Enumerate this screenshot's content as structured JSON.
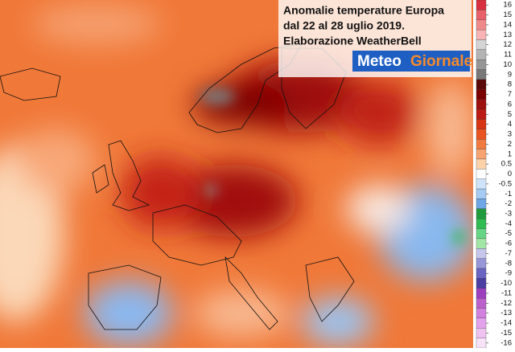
{
  "title_lines": [
    "Anomalie temperature Europa",
    "dal 22 al 28 uglio 2019.",
    "Elaborazione WeatherBell"
  ],
  "logo": {
    "first": "Meteo",
    "second": "Giornale"
  },
  "colorbar": {
    "ticks": [
      16,
      15,
      14,
      13,
      12,
      11,
      10,
      9,
      8,
      7,
      6,
      5,
      4,
      3,
      2,
      1,
      0.5,
      0,
      -0.5,
      -1,
      -2,
      -3,
      -4,
      -5,
      -6,
      -7,
      -8,
      -9,
      -10,
      -11,
      -12,
      -13,
      -14,
      -15,
      -16
    ],
    "colors": [
      "#d8303f",
      "#e8606a",
      "#f08a8a",
      "#f8b4b4",
      "#d4d4d4",
      "#b4b4b4",
      "#969696",
      "#787878",
      "#5a0a0a",
      "#7a0000",
      "#9c1010",
      "#bc1a14",
      "#d63414",
      "#e85422",
      "#f07a40",
      "#f8a472",
      "#fcd2aa",
      "#ffffff",
      "#cfe4fa",
      "#a6cbf2",
      "#6fa6e6",
      "#1f9a3c",
      "#2fbc52",
      "#66d686",
      "#a2e6a6",
      "#c6c6ec",
      "#9696d8",
      "#6a64c2",
      "#4a3ea2",
      "#9c40be",
      "#bc60cc",
      "#d282de",
      "#e4a2ec",
      "#f0c2f2",
      "#f8e2f8"
    ]
  }
}
